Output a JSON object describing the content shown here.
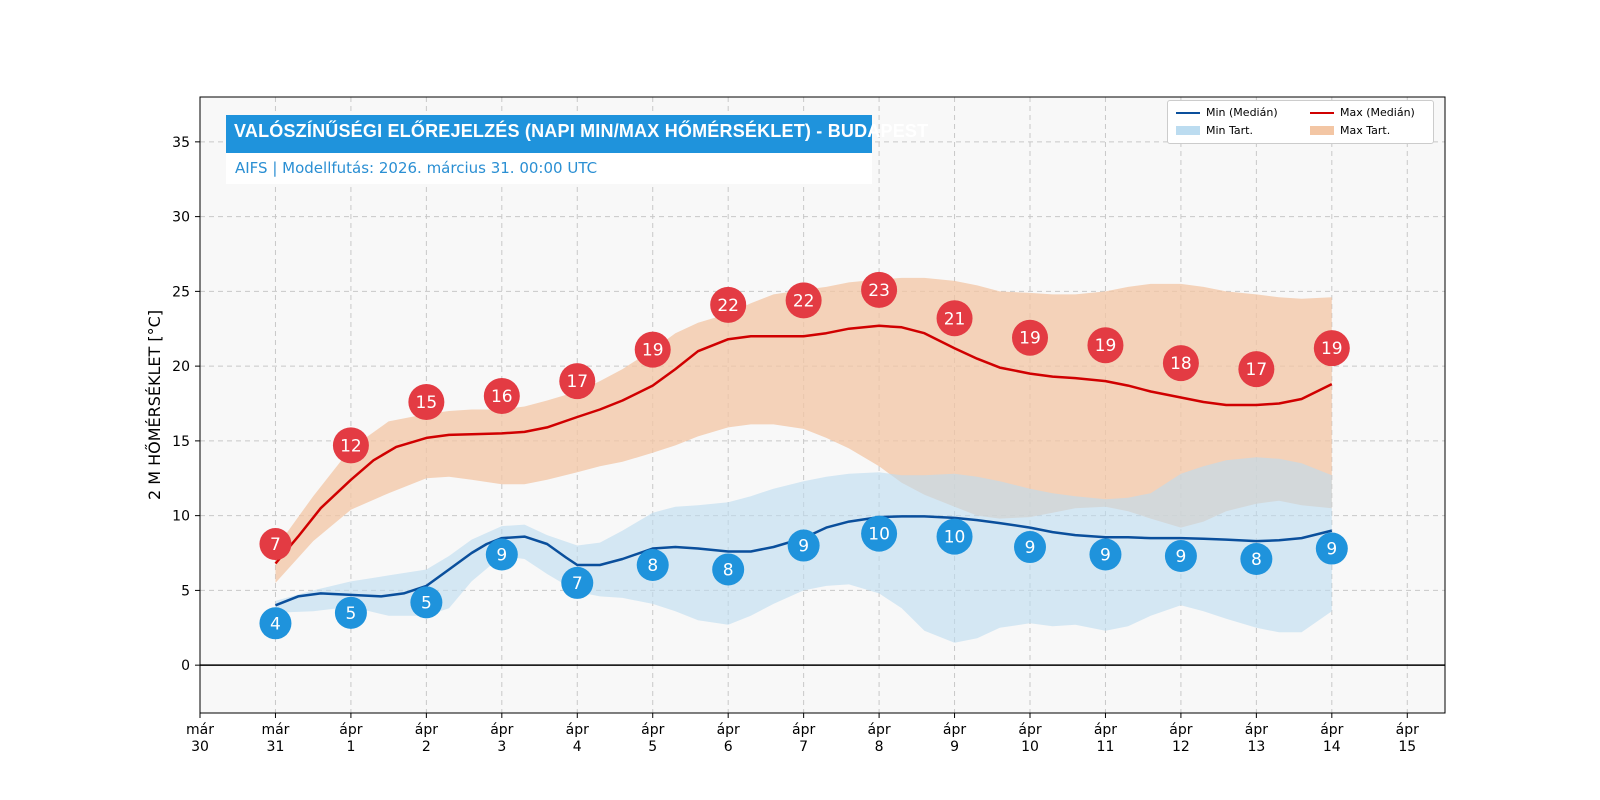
{
  "chart_data": {
    "type": "line",
    "title": "VALÓSZÍNŰSÉGI ELŐREJELZÉS (NAPI MIN/MAX HŐMÉRSÉKLET) - BUDAPEST",
    "subtitle": "AIFS | Modellfutás: 2026. március 31. 00:00 UTC",
    "ylabel": "2 M HŐMÉRSÉKLET [°C]",
    "xlabel": "",
    "ylim": [
      -3.2,
      38
    ],
    "xlim": [
      -1,
      15.5
    ],
    "yticks": [
      0,
      5,
      10,
      15,
      20,
      25,
      30,
      35
    ],
    "xticks": [
      {
        "line1": "már",
        "line2": "30"
      },
      {
        "line1": "már",
        "line2": "31"
      },
      {
        "line1": "ápr",
        "line2": "1"
      },
      {
        "line1": "ápr",
        "line2": "2"
      },
      {
        "line1": "ápr",
        "line2": "3"
      },
      {
        "line1": "ápr",
        "line2": "4"
      },
      {
        "line1": "ápr",
        "line2": "5"
      },
      {
        "line1": "ápr",
        "line2": "6"
      },
      {
        "line1": "ápr",
        "line2": "7"
      },
      {
        "line1": "ápr",
        "line2": "8"
      },
      {
        "line1": "ápr",
        "line2": "9"
      },
      {
        "line1": "ápr",
        "line2": "10"
      },
      {
        "line1": "ápr",
        "line2": "11"
      },
      {
        "line1": "ápr",
        "line2": "12"
      },
      {
        "line1": "ápr",
        "line2": "13"
      },
      {
        "line1": "ápr",
        "line2": "14"
      },
      {
        "line1": "ápr",
        "line2": "15"
      }
    ],
    "grid": true,
    "legend_position": "top-right",
    "colors": {
      "min_line": "#0a4f9c",
      "max_line": "#d00000",
      "min_band": "#bcdcf0",
      "max_band": "#f3c6a4",
      "min_marker": "#1f93dc",
      "max_marker": "#e33b43",
      "plot_bg": "#f8f8f8",
      "title_bg": "#1f93dc"
    },
    "series": [
      {
        "name": "Min (Medián)",
        "x": [
          0,
          0.3,
          0.6,
          1,
          1.4,
          1.7,
          2,
          2.3,
          2.6,
          2.8,
          3,
          3.3,
          3.6,
          3.85,
          4,
          4.3,
          4.6,
          5,
          5.3,
          5.6,
          6,
          6.3,
          6.6,
          7,
          7.3,
          7.6,
          8,
          8.3,
          8.6,
          9,
          9.3,
          9.6,
          10,
          10.3,
          10.6,
          11,
          11.3,
          11.6,
          12,
          12.3,
          12.6,
          13,
          13.3,
          13.6,
          14
        ],
        "values": [
          4.0,
          4.6,
          4.8,
          4.7,
          4.6,
          4.8,
          5.3,
          6.4,
          7.5,
          8.1,
          8.5,
          8.6,
          8.1,
          7.2,
          6.7,
          6.7,
          7.1,
          7.8,
          7.9,
          7.8,
          7.6,
          7.6,
          7.9,
          8.5,
          9.2,
          9.6,
          9.9,
          9.95,
          9.95,
          9.85,
          9.7,
          9.5,
          9.2,
          8.9,
          8.7,
          8.55,
          8.55,
          8.5,
          8.5,
          8.45,
          8.4,
          8.3,
          8.35,
          8.5,
          9.0
        ]
      },
      {
        "name": "Max (Medián)",
        "x": [
          0,
          0.3,
          0.6,
          1,
          1.3,
          1.6,
          2,
          2.3,
          2.6,
          3,
          3.3,
          3.6,
          4,
          4.3,
          4.6,
          5,
          5.3,
          5.6,
          6,
          6.3,
          6.6,
          7,
          7.3,
          7.6,
          8,
          8.3,
          8.6,
          9,
          9.3,
          9.6,
          10,
          10.3,
          10.6,
          11,
          11.3,
          11.6,
          12,
          12.3,
          12.6,
          13,
          13.3,
          13.6,
          14
        ],
        "values": [
          6.8,
          8.6,
          10.5,
          12.4,
          13.7,
          14.6,
          15.2,
          15.4,
          15.45,
          15.5,
          15.6,
          15.9,
          16.6,
          17.1,
          17.7,
          18.7,
          19.8,
          21.0,
          21.8,
          22.0,
          22.0,
          22.0,
          22.2,
          22.5,
          22.7,
          22.6,
          22.2,
          21.2,
          20.5,
          19.9,
          19.5,
          19.3,
          19.2,
          19.0,
          18.7,
          18.3,
          17.9,
          17.6,
          17.4,
          17.4,
          17.5,
          17.8,
          18.8
        ]
      }
    ],
    "bands": [
      {
        "name": "Min Tart.",
        "x": [
          0,
          0.5,
          1,
          1.5,
          2,
          2.3,
          2.6,
          3,
          3.3,
          3.6,
          4,
          4.3,
          4.6,
          5,
          5.3,
          5.6,
          6,
          6.3,
          6.6,
          7,
          7.3,
          7.6,
          8,
          8.3,
          8.6,
          9,
          9.3,
          9.6,
          10,
          10.3,
          10.6,
          11,
          11.3,
          11.6,
          12,
          12.3,
          12.6,
          13,
          13.3,
          13.6,
          14
        ],
        "upper": [
          4.3,
          5.0,
          5.6,
          6.0,
          6.4,
          7.3,
          8.4,
          9.3,
          9.4,
          8.7,
          8.0,
          8.2,
          9.0,
          10.2,
          10.6,
          10.7,
          10.9,
          11.3,
          11.8,
          12.3,
          12.6,
          12.8,
          12.9,
          12.7,
          12.7,
          12.8,
          12.6,
          12.3,
          11.8,
          11.5,
          11.3,
          11.1,
          11.2,
          11.5,
          12.8,
          13.3,
          13.7,
          13.9,
          13.8,
          13.5,
          12.7
        ],
        "lower": [
          3.5,
          3.6,
          3.9,
          3.3,
          3.3,
          3.8,
          5.6,
          7.3,
          7.1,
          6.1,
          4.9,
          4.6,
          4.5,
          4.1,
          3.6,
          3.0,
          2.7,
          3.3,
          4.1,
          5.0,
          5.3,
          5.4,
          4.8,
          3.8,
          2.3,
          1.5,
          1.8,
          2.5,
          2.8,
          2.6,
          2.7,
          2.3,
          2.6,
          3.3,
          4.0,
          3.6,
          3.1,
          2.5,
          2.2,
          2.2,
          3.6
        ]
      },
      {
        "name": "Max Tart.",
        "x": [
          0,
          0.5,
          1,
          1.5,
          2,
          2.3,
          2.6,
          3,
          3.3,
          3.6,
          4,
          4.3,
          4.6,
          5,
          5.3,
          5.6,
          6,
          6.3,
          6.6,
          7,
          7.3,
          7.6,
          8,
          8.3,
          8.6,
          9,
          9.3,
          9.6,
          10,
          10.3,
          10.6,
          11,
          11.3,
          11.6,
          12,
          12.3,
          12.6,
          13,
          13.3,
          13.6,
          14
        ],
        "upper": [
          7.8,
          11.3,
          14.5,
          16.3,
          16.8,
          17.0,
          17.1,
          17.1,
          17.3,
          17.7,
          18.3,
          19.0,
          19.8,
          21.1,
          22.2,
          22.9,
          23.5,
          24.2,
          24.8,
          25.1,
          25.3,
          25.6,
          25.8,
          25.9,
          25.9,
          25.7,
          25.4,
          25.0,
          24.9,
          24.8,
          24.8,
          25.0,
          25.3,
          25.5,
          25.5,
          25.3,
          25.0,
          24.8,
          24.6,
          24.5,
          24.6
        ],
        "lower": [
          5.5,
          8.3,
          10.4,
          11.5,
          12.5,
          12.6,
          12.4,
          12.1,
          12.1,
          12.4,
          12.9,
          13.3,
          13.6,
          14.2,
          14.7,
          15.3,
          15.9,
          16.1,
          16.1,
          15.8,
          15.2,
          14.5,
          13.3,
          12.2,
          11.4,
          10.6,
          10.0,
          9.8,
          9.9,
          10.2,
          10.5,
          10.6,
          10.3,
          9.8,
          9.2,
          9.6,
          10.3,
          10.8,
          11.0,
          10.7,
          10.5
        ]
      }
    ],
    "max_markers": {
      "x": [
        0,
        1,
        2,
        3,
        4,
        5,
        6,
        7,
        8,
        9,
        10,
        11,
        12,
        13,
        14
      ],
      "y": [
        8.1,
        14.7,
        17.6,
        18.0,
        19.0,
        21.1,
        24.1,
        24.4,
        25.1,
        23.2,
        21.9,
        21.4,
        20.2,
        19.8,
        21.2
      ],
      "labels": [
        "7",
        "12",
        "15",
        "16",
        "17",
        "19",
        "22",
        "22",
        "23",
        "21",
        "19",
        "19",
        "18",
        "17",
        "19"
      ]
    },
    "min_markers": {
      "x": [
        0,
        1,
        2,
        3,
        4,
        5,
        6,
        7,
        8,
        9,
        10,
        11,
        12,
        13,
        14
      ],
      "y": [
        2.8,
        3.5,
        4.2,
        7.4,
        5.5,
        6.7,
        6.4,
        8.0,
        8.8,
        8.6,
        7.9,
        7.4,
        7.3,
        7.1,
        7.8
      ],
      "labels": [
        "4",
        "5",
        "5",
        "9",
        "7",
        "8",
        "8",
        "9",
        "10",
        "10",
        "9",
        "9",
        "9",
        "8",
        "9"
      ]
    }
  },
  "legend": {
    "min_median": "Min (Medián)",
    "max_median": "Max (Medián)",
    "min_range": "Min Tart.",
    "max_range": "Max Tart."
  }
}
